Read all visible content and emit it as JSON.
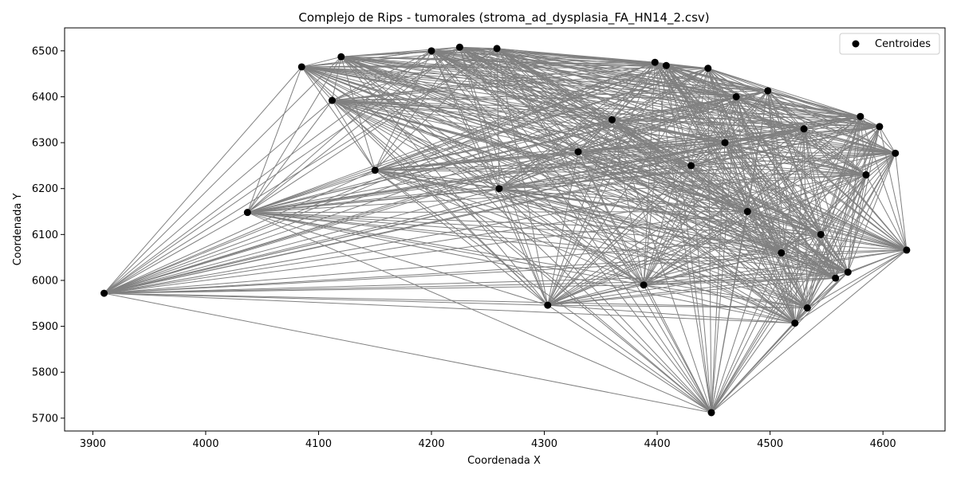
{
  "chart_data": {
    "type": "scatter",
    "title": "Complejo de Rips - tumorales (stroma_ad_dysplasia_FA_HN14_2.csv)",
    "xlabel": "Coordenada X",
    "ylabel": "Coordenada Y",
    "xlim": [
      3875,
      4655
    ],
    "ylim": [
      5672,
      6550
    ],
    "xticks": [
      "3900",
      "4000",
      "4100",
      "4200",
      "4300",
      "4400",
      "4500",
      "4600"
    ],
    "yticks": [
      "5700",
      "5800",
      "5900",
      "6000",
      "6100",
      "6200",
      "6300",
      "6400",
      "6500"
    ],
    "grid": false,
    "legend": {
      "placement": "top-right",
      "entries": [
        "Centroides"
      ]
    },
    "colors": {
      "points": "#000000",
      "edges": "#808080"
    },
    "series": [
      {
        "name": "Centroides",
        "points": [
          [
            3910,
            5972
          ],
          [
            4037,
            6148
          ],
          [
            4085,
            6465
          ],
          [
            4112,
            6392
          ],
          [
            4120,
            6487
          ],
          [
            4150,
            6240
          ],
          [
            4200,
            6500
          ],
          [
            4225,
            6508
          ],
          [
            4258,
            6505
          ],
          [
            4303,
            5946
          ],
          [
            4330,
            6280
          ],
          [
            4360,
            6350
          ],
          [
            4388,
            5990
          ],
          [
            4398,
            6475
          ],
          [
            4408,
            6468
          ],
          [
            4430,
            6250
          ],
          [
            4445,
            6462
          ],
          [
            4448,
            5712
          ],
          [
            4460,
            6300
          ],
          [
            4480,
            6150
          ],
          [
            4498,
            6413
          ],
          [
            4510,
            6060
          ],
          [
            4522,
            5907
          ],
          [
            4533,
            5940
          ],
          [
            4545,
            6100
          ],
          [
            4558,
            6005
          ],
          [
            4569,
            6018
          ],
          [
            4580,
            6357
          ],
          [
            4597,
            6335
          ],
          [
            4611,
            6277
          ],
          [
            4621,
            6066
          ],
          [
            4585,
            6230
          ],
          [
            4530,
            6330
          ],
          [
            4470,
            6400
          ],
          [
            4260,
            6200
          ]
        ]
      }
    ]
  }
}
